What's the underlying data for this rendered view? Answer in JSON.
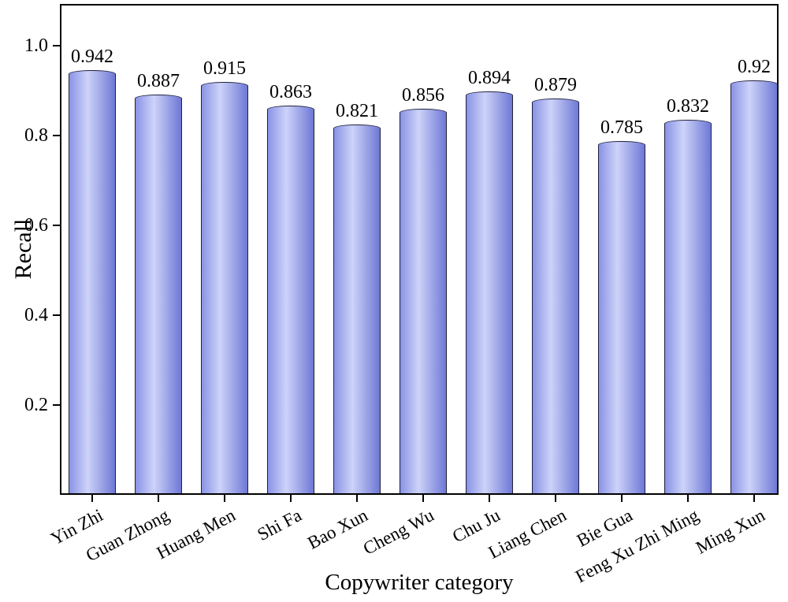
{
  "chart_data": {
    "type": "bar",
    "title": "",
    "xlabel": "Copywriter category",
    "ylabel": "Recall",
    "categories": [
      "Yin Zhi",
      "Guan Zhong",
      "Huang Men",
      "Shi Fa",
      "Bao Xun",
      "Cheng Wu",
      "Chu Ju",
      "Liang Chen",
      "Bie Gua",
      "Feng Xu Zhi Ming",
      "Ming Xun"
    ],
    "values": [
      0.942,
      0.887,
      0.915,
      0.863,
      0.821,
      0.856,
      0.894,
      0.879,
      0.785,
      0.832,
      0.92
    ],
    "value_labels": [
      "0.942",
      "0.887",
      "0.915",
      "0.863",
      "0.821",
      "0.856",
      "0.894",
      "0.879",
      "0.785",
      "0.832",
      "0.92"
    ],
    "yticks": [
      0.2,
      0.4,
      0.6,
      0.8,
      1.0
    ],
    "ytick_labels": [
      "0.2",
      "0.4",
      "0.6",
      "0.8",
      "1.0"
    ],
    "ylim": [
      0,
      1.09
    ],
    "grid": false,
    "legend": null,
    "colors": {
      "bar_edge": "#20203a",
      "bar_left": "#8a93e5",
      "bar_highlight": "#cdd3f9",
      "bar_right": "#6e78d5",
      "axis": "#000000",
      "text": "#000000",
      "background": "#ffffff"
    }
  }
}
